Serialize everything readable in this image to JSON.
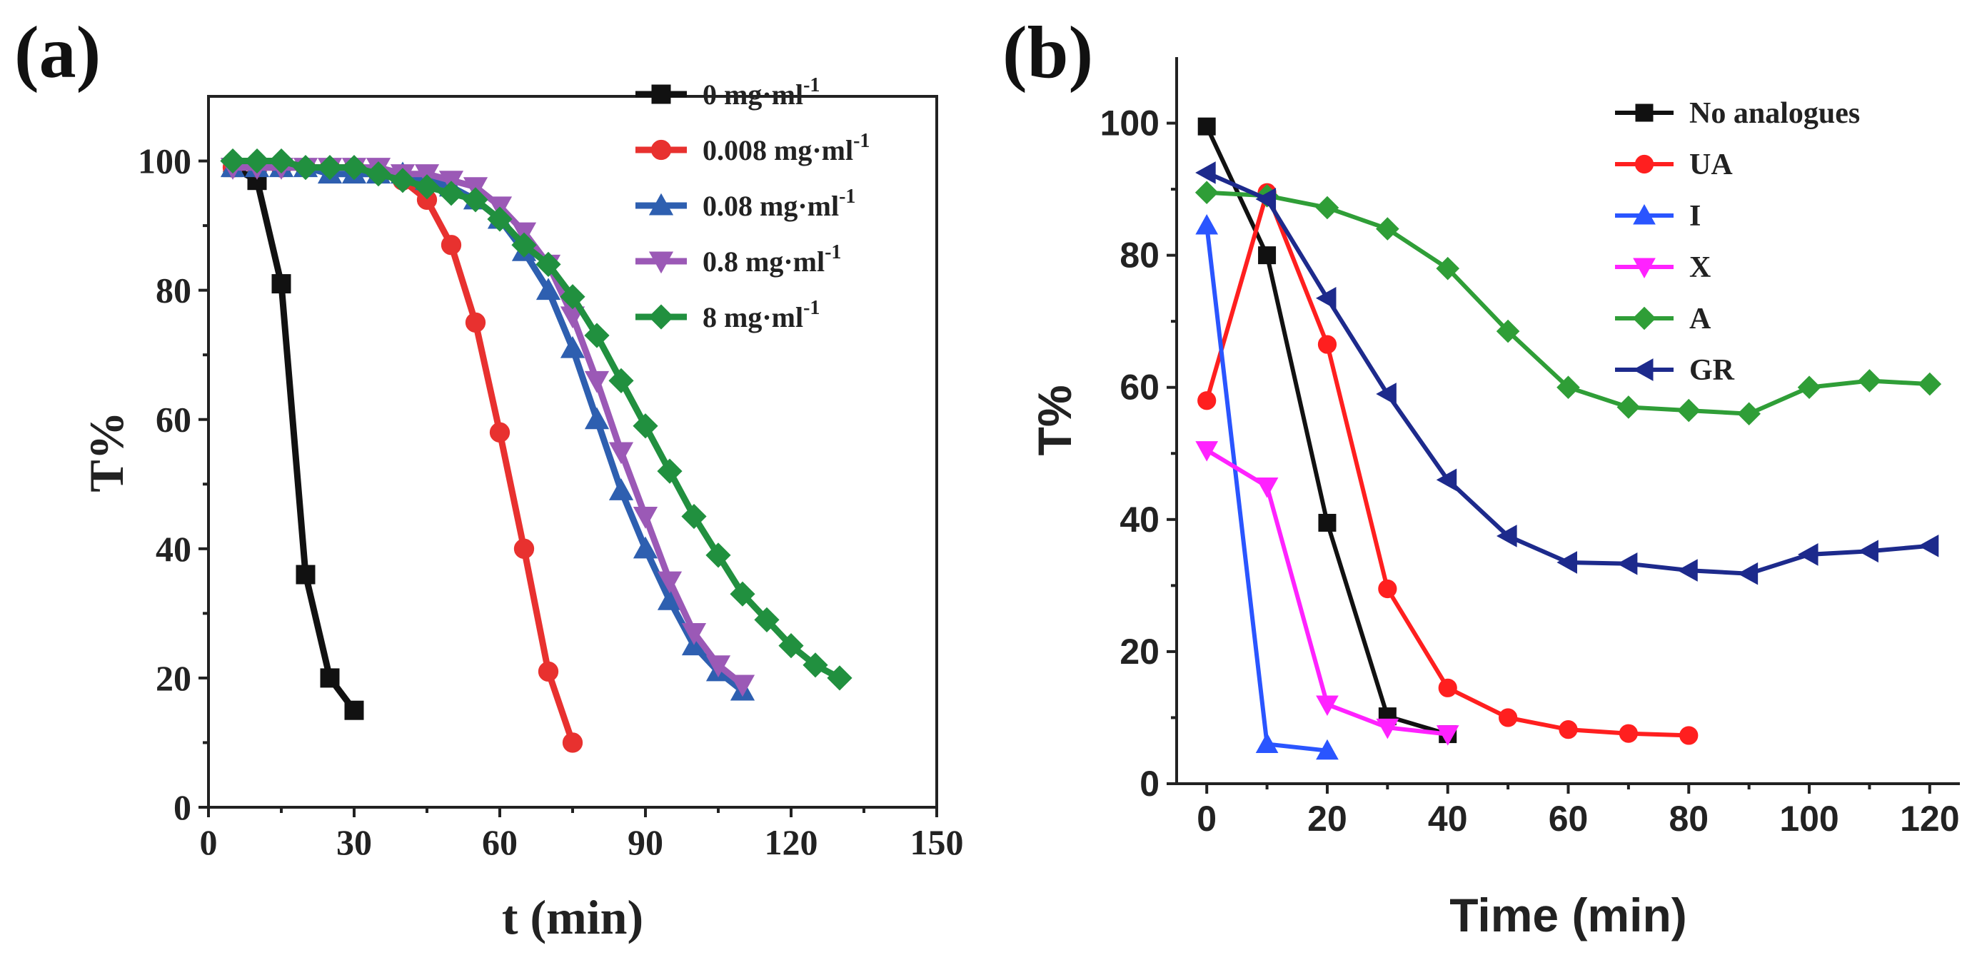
{
  "chart_data": [
    {
      "panel_label": "(a)",
      "type": "line",
      "xlabel": "t (min)",
      "ylabel": "T%",
      "xlim": [
        0,
        150
      ],
      "ylim": [
        0,
        110
      ],
      "xticks": [
        0,
        30,
        60,
        90,
        120,
        150
      ],
      "yticks": [
        0,
        20,
        40,
        60,
        80,
        100
      ],
      "legend_position": "top-right",
      "grid": false,
      "series": [
        {
          "name": "0 mg·ml",
          "sup": "-1",
          "color": "#111111",
          "marker": "square",
          "x": [
            5,
            10,
            15,
            20,
            25,
            30
          ],
          "y": [
            99,
            97,
            81,
            36,
            20,
            15
          ]
        },
        {
          "name": "0.008 mg·ml",
          "sup": "-1",
          "color": "#e8312f",
          "marker": "circle",
          "x": [
            5,
            10,
            15,
            20,
            25,
            30,
            35,
            40,
            45,
            50,
            55,
            60,
            65,
            70,
            75
          ],
          "y": [
            99,
            99,
            99,
            99,
            99,
            99,
            98,
            97,
            94,
            87,
            75,
            58,
            40,
            21,
            10
          ]
        },
        {
          "name": "0.08 mg·ml",
          "sup": "-1",
          "color": "#2e5fb0",
          "marker": "triangle-up",
          "x": [
            5,
            10,
            15,
            20,
            25,
            30,
            35,
            40,
            45,
            50,
            55,
            60,
            65,
            70,
            75,
            80,
            85,
            90,
            95,
            100,
            105,
            110
          ],
          "y": [
            99,
            99,
            99,
            99,
            98,
            98,
            98,
            98,
            97,
            96,
            94,
            91,
            86,
            80,
            71,
            60,
            49,
            40,
            32,
            25,
            21,
            18
          ]
        },
        {
          "name": "0.8 mg·ml",
          "sup": "-1",
          "color": "#9b59b6",
          "marker": "triangle-down",
          "x": [
            5,
            10,
            15,
            20,
            25,
            30,
            35,
            40,
            45,
            50,
            55,
            60,
            65,
            70,
            75,
            80,
            85,
            90,
            95,
            100,
            105,
            110
          ],
          "y": [
            99,
            99,
            99,
            99,
            99,
            99,
            99,
            98,
            98,
            97,
            96,
            93,
            89,
            84,
            76,
            66,
            55,
            45,
            35,
            27,
            22,
            19
          ]
        },
        {
          "name": "8 mg·ml",
          "sup": "-1",
          "color": "#21903f",
          "marker": "diamond",
          "x": [
            5,
            10,
            15,
            20,
            25,
            30,
            35,
            40,
            45,
            50,
            55,
            60,
            65,
            70,
            75,
            80,
            85,
            90,
            95,
            100,
            105,
            110,
            115,
            120,
            125,
            130
          ],
          "y": [
            100,
            100,
            100,
            99,
            99,
            99,
            98,
            97,
            96,
            95,
            94,
            91,
            87,
            84,
            79,
            73,
            66,
            59,
            52,
            45,
            39,
            33,
            29,
            25,
            22,
            20
          ]
        }
      ]
    },
    {
      "panel_label": "(b)",
      "type": "line",
      "xlabel": "Time (min)",
      "ylabel": "T%",
      "xlim": [
        -5,
        125
      ],
      "ylim": [
        0,
        110
      ],
      "xticks": [
        0,
        20,
        40,
        60,
        80,
        100,
        120
      ],
      "yticks": [
        0,
        20,
        40,
        60,
        80,
        100
      ],
      "legend_position": "top-right",
      "grid": false,
      "series": [
        {
          "name": "No analogues",
          "color": "#111111",
          "marker": "square",
          "x": [
            0,
            10,
            20,
            30,
            40
          ],
          "y": [
            99.5,
            80,
            39.5,
            10.2,
            7.5
          ]
        },
        {
          "name": "UA",
          "color": "#ff1f1f",
          "marker": "circle",
          "x": [
            0,
            10,
            20,
            30,
            40,
            50,
            60,
            70,
            80
          ],
          "y": [
            58,
            89.5,
            66.5,
            29.5,
            14.5,
            10,
            8.2,
            7.6,
            7.3
          ]
        },
        {
          "name": "I",
          "color": "#2a55ff",
          "marker": "triangle-up",
          "x": [
            0,
            10,
            20
          ],
          "y": [
            84.5,
            6,
            5
          ]
        },
        {
          "name": "X",
          "color": "#ff22ff",
          "marker": "triangle-down",
          "x": [
            0,
            10,
            20,
            30,
            40
          ],
          "y": [
            50.5,
            45,
            12,
            8.5,
            7.5
          ]
        },
        {
          "name": "A",
          "color": "#2f9e37",
          "marker": "diamond",
          "x": [
            0,
            10,
            20,
            30,
            40,
            50,
            60,
            70,
            80,
            90,
            100,
            110,
            120
          ],
          "y": [
            89.5,
            89,
            87.2,
            84,
            78,
            68.5,
            60,
            57,
            56.5,
            56,
            60,
            61,
            60.5
          ]
        },
        {
          "name": "GR",
          "color": "#1d2a8c",
          "marker": "triangle-left",
          "x": [
            0,
            10,
            20,
            30,
            40,
            50,
            60,
            70,
            80,
            90,
            100,
            110,
            120
          ],
          "y": [
            92.5,
            88.5,
            73.5,
            59,
            46,
            37.5,
            33.5,
            33.3,
            32.3,
            31.8,
            34.7,
            35.2,
            36
          ]
        }
      ]
    }
  ]
}
